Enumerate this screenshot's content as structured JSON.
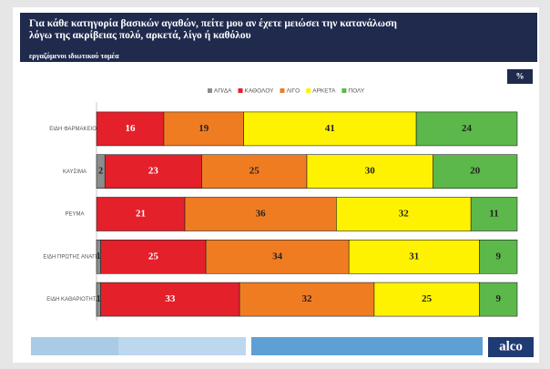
{
  "chart_data": {
    "type": "stacked_barh",
    "title": "Για κάθε κατηγορία βασικών αγαθών, πείτε μου αν έχετε μειώσει την κατανάλωση λόγω της ακρίβειας πολύ, αρκετά, λίγο ή καθόλου",
    "subtitle": "εργαζόμενοι ιδιωτικού τομέα",
    "unit_badge": "%",
    "logo": "alco",
    "categories": [
      "ΕΙΔΗ ΦΑΡΜΑΚΕΙΟΥ",
      "ΚΑΥΣΙΜΑ",
      "ΡΕΥΜΑ",
      "ΕΙΔΗ ΠΡΩΤΗΣ ΑΝΑΓΚΗΣ",
      "ΕΙΔΗ ΚΑΘΑΡΙΟΤΗΤΑΣ"
    ],
    "xlim": [
      0,
      100
    ],
    "legend": "top",
    "series": [
      {
        "name": "ΑΠ/ΔΑ",
        "color": "#8c8c8c",
        "values": [
          0,
          2,
          0,
          1,
          1
        ]
      },
      {
        "name": "ΚΑΘΟΛΟΥ",
        "color": "#e4202a",
        "values": [
          16,
          23,
          21,
          25,
          33
        ]
      },
      {
        "name": "ΛΙΓΟ",
        "color": "#f07c22",
        "values": [
          19,
          25,
          36,
          34,
          32
        ]
      },
      {
        "name": "ΑΡΚΕΤΑ",
        "color": "#fff200",
        "values": [
          41,
          30,
          32,
          31,
          25
        ]
      },
      {
        "name": "ΠΟΛΥ",
        "color": "#5cb84a",
        "values": [
          24,
          20,
          11,
          9,
          9
        ]
      }
    ]
  }
}
